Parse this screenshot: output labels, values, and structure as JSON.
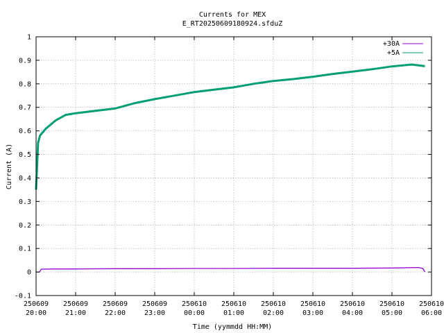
{
  "chart_data": {
    "type": "line",
    "title": "Currents for MEX",
    "subtitle": "E_RT20250609180924.sfduZ",
    "xlabel": "Time (yymmdd HH:MM)",
    "ylabel": "Current (A)",
    "ylim": [
      -0.1,
      1.0
    ],
    "xlim": [
      "250609 20:00",
      "250610 06:00"
    ],
    "grid": true,
    "legend_position": "top-right",
    "y_ticks": [
      "-0.1",
      "0",
      "0.1",
      "0.2",
      "0.3",
      "0.4",
      "0.5",
      "0.6",
      "0.7",
      "0.8",
      "0.9",
      "1"
    ],
    "x_ticks": [
      {
        "date": "250609",
        "time": "20:00"
      },
      {
        "date": "250609",
        "time": "21:00"
      },
      {
        "date": "250609",
        "time": "22:00"
      },
      {
        "date": "250609",
        "time": "23:00"
      },
      {
        "date": "250610",
        "time": "00:00"
      },
      {
        "date": "250610",
        "time": "01:00"
      },
      {
        "date": "250610",
        "time": "02:00"
      },
      {
        "date": "250610",
        "time": "03:00"
      },
      {
        "date": "250610",
        "time": "04:00"
      },
      {
        "date": "250610",
        "time": "05:00"
      },
      {
        "date": "250610",
        "time": "06:00"
      }
    ],
    "series": [
      {
        "name": "+30A",
        "color": "#9400d3",
        "points": [
          [
            "250609 20:00",
            0.0
          ],
          [
            "250609 20:05",
            0.0
          ],
          [
            "250609 20:08",
            0.012
          ],
          [
            "250609 20:30",
            0.013
          ],
          [
            "250609 21:00",
            0.013
          ],
          [
            "250609 22:00",
            0.014
          ],
          [
            "250609 23:00",
            0.014
          ],
          [
            "250610 00:00",
            0.015
          ],
          [
            "250610 01:00",
            0.015
          ],
          [
            "250610 02:00",
            0.016
          ],
          [
            "250610 03:00",
            0.016
          ],
          [
            "250610 04:00",
            0.016
          ],
          [
            "250610 05:00",
            0.017
          ],
          [
            "250610 05:40",
            0.019
          ],
          [
            "250610 05:47",
            0.015
          ],
          [
            "250610 05:50",
            0.0
          ]
        ]
      },
      {
        "name": "+5A",
        "color": "#009e73",
        "points": [
          [
            "250609 20:00",
            0.35
          ],
          [
            "250609 20:03",
            0.55
          ],
          [
            "250609 20:06",
            0.58
          ],
          [
            "250609 20:15",
            0.61
          ],
          [
            "250609 20:30",
            0.645
          ],
          [
            "250609 20:45",
            0.668
          ],
          [
            "250609 21:00",
            0.675
          ],
          [
            "250609 21:30",
            0.685
          ],
          [
            "250609 22:00",
            0.695
          ],
          [
            "250609 22:30",
            0.718
          ],
          [
            "250609 23:00",
            0.735
          ],
          [
            "250609 23:30",
            0.75
          ],
          [
            "250610 00:00",
            0.765
          ],
          [
            "250610 00:30",
            0.775
          ],
          [
            "250610 01:00",
            0.785
          ],
          [
            "250610 01:30",
            0.8
          ],
          [
            "250610 02:00",
            0.812
          ],
          [
            "250610 02:30",
            0.82
          ],
          [
            "250610 03:00",
            0.83
          ],
          [
            "250610 03:30",
            0.842
          ],
          [
            "250610 04:00",
            0.852
          ],
          [
            "250610 04:30",
            0.862
          ],
          [
            "250610 05:00",
            0.874
          ],
          [
            "250610 05:30",
            0.882
          ],
          [
            "250610 05:50",
            0.875
          ]
        ]
      }
    ]
  }
}
